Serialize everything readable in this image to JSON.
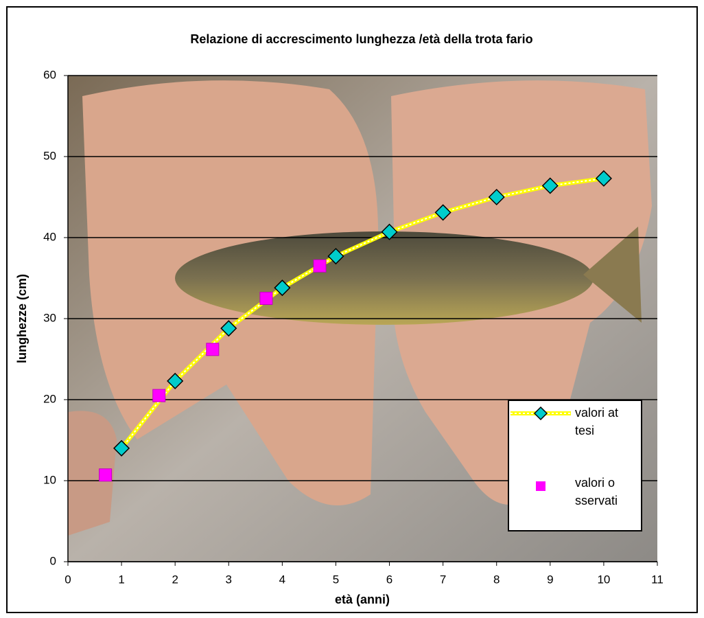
{
  "chart_data": {
    "type": "scatter",
    "title": "Relazione di accrescimento lunghezza /età della trota fario",
    "x_label": "età (anni)",
    "y_label": "lunghezze (cm)",
    "xlim": [
      0,
      11
    ],
    "xticks": [
      0,
      1,
      2,
      3,
      4,
      5,
      6,
      7,
      8,
      9,
      10,
      11
    ],
    "ylim": [
      0,
      60
    ],
    "yticks": [
      0,
      10,
      20,
      30,
      40,
      50,
      60
    ],
    "grid": true,
    "legend": "right",
    "series": [
      {
        "name": "valori attesi",
        "color": "#00cccc",
        "line": true,
        "line_color": "#ffff00",
        "marker": "diamond",
        "x": [
          1,
          2,
          3,
          4,
          5,
          6,
          7,
          8,
          9,
          10
        ],
        "values": [
          14,
          22.3,
          28.8,
          33.8,
          37.7,
          40.7,
          43.1,
          45,
          46.4,
          47.3
        ]
      },
      {
        "name": "valori osservati",
        "color": "#ff00ff",
        "line": false,
        "marker": "square",
        "x": [
          0.7,
          1.7,
          2.7,
          3.7,
          4.7
        ],
        "values": [
          10.7,
          20.5,
          26.2,
          32.5,
          36.5
        ]
      }
    ]
  }
}
